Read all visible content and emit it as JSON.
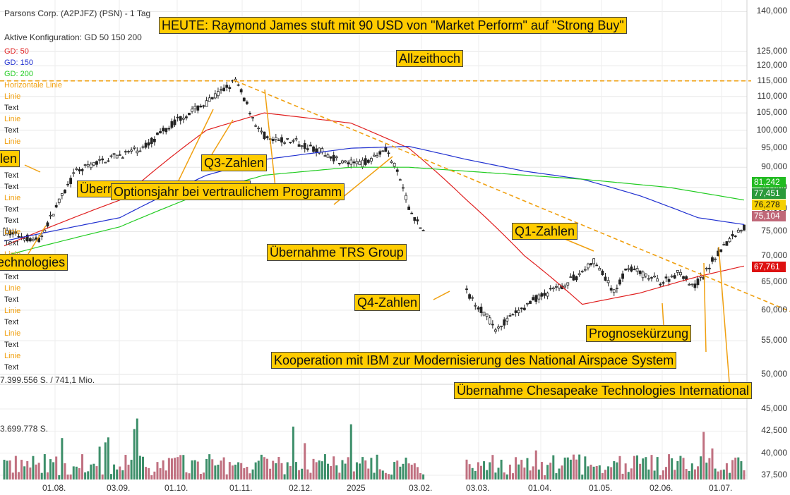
{
  "header": {
    "title": "Parsons Corp. (A2PJFZ) (PSN) - 1 Tag",
    "config": "Aktive Konfiguration: GD 50 150 200",
    "volume_label": "7.399.556 S. / 741,1 Mio.",
    "volume_mark": "3.699.778 S."
  },
  "side_legend": [
    {
      "text": "GD: 50",
      "color": "#e02020"
    },
    {
      "text": "GD: 150",
      "color": "#2030d0"
    },
    {
      "text": "GD: 200",
      "color": "#22cc22"
    },
    {
      "text": "Horizontale Linie",
      "color": "#f0a010"
    },
    {
      "text": "Linie",
      "color": "#f0a010"
    },
    {
      "text": "Text",
      "color": "#222222"
    },
    {
      "text": "Linie",
      "color": "#f0a010"
    },
    {
      "text": "Text",
      "color": "#222222"
    },
    {
      "text": "Linie",
      "color": "#f0a010"
    },
    {
      "text": "Text",
      "color": "#222222"
    },
    {
      "text": "Text",
      "color": "#222222"
    },
    {
      "text": "Linie",
      "color": "#f0a010"
    },
    {
      "text": "Text",
      "color": "#222222"
    },
    {
      "text": "Text",
      "color": "#222222"
    },
    {
      "text": "Linie",
      "color": "#f0a010"
    },
    {
      "text": "Text",
      "color": "#222222"
    },
    {
      "text": "Linie",
      "color": "#f0a010"
    },
    {
      "text": "Text",
      "color": "#222222"
    },
    {
      "text": "Linie",
      "color": "#f0a010"
    },
    {
      "text": "Text",
      "color": "#222222"
    },
    {
      "text": "Linie",
      "color": "#f0a010"
    },
    {
      "text": "Text",
      "color": "#222222"
    },
    {
      "text": "Linie",
      "color": "#f0a010"
    },
    {
      "text": "Text",
      "color": "#222222"
    },
    {
      "text": "Linie",
      "color": "#f0a010"
    },
    {
      "text": "Text",
      "color": "#222222"
    }
  ],
  "annotations": [
    "HEUTE: Raymond James stuft mit 90 USD von \"Market Perform\" auf \"Strong Buy\"",
    "Allzeithoch",
    "len",
    "Q3-Zahlen",
    "Übernahme BCC Engineering",
    "Optionsjahr bei vertraulichem Programm",
    "Übernahme TRS Group",
    "echnologies",
    "Q1-Zahlen",
    "Q4-Zahlen",
    "Prognosekürzung",
    "Kooperation mit IBM zur Modernisierung des National Airspace System",
    "Übernahme Chesapeake Technologies International"
  ],
  "price_badges": [
    {
      "value": "81,242",
      "color": "#22bb22",
      "text_color": "#ffffff"
    },
    {
      "value": "77,451",
      "color": "#2a9a3a",
      "text_color": "#ffffff"
    },
    {
      "value": "76,278",
      "color": "#f5d000",
      "text_color": "#111111"
    },
    {
      "value": "75,104",
      "color": "#c06878",
      "text_color": "#ffffff"
    },
    {
      "value": "67,761",
      "color": "#dd1111",
      "text_color": "#ffffff"
    }
  ],
  "chart_data": {
    "type": "candlestick",
    "scale": "log",
    "x_tick_labels": [
      "01.08.",
      "03.09.",
      "01.10.",
      "01.11.",
      "02.12.",
      "2025",
      "03.02.",
      "03.03.",
      "01.04.",
      "01.05.",
      "02.06.",
      "01.07."
    ],
    "y_ticks": [
      50000,
      55000,
      60000,
      65000,
      70000,
      75000,
      80000,
      85000,
      90000,
      95000,
      100000,
      105000,
      110000,
      115000,
      120000,
      125000,
      140000
    ],
    "y_tick_labels": [
      "50,000",
      "55,000",
      "60,000",
      "65,000",
      "70,000",
      "75,000",
      "80,000",
      "85,000",
      "90,000",
      "95,000",
      "100,000",
      "105,000",
      "110,000",
      "115,000",
      "120,000",
      "125,000",
      "140,000"
    ],
    "volume_ticks": [
      37500,
      40000,
      42500,
      45000
    ],
    "volume_tick_labels": [
      "37,500",
      "40,000",
      "42,500",
      "45,000"
    ],
    "series": [
      {
        "name": "GD: 50",
        "color": "#e02020"
      },
      {
        "name": "GD: 150",
        "color": "#2030d0"
      },
      {
        "name": "GD: 200",
        "color": "#22cc22"
      }
    ],
    "price_path": [
      [
        0,
        75
      ],
      [
        12,
        73
      ],
      [
        25,
        89
      ],
      [
        35,
        92
      ],
      [
        48,
        95
      ],
      [
        60,
        103
      ],
      [
        70,
        108
      ],
      [
        80,
        115
      ],
      [
        88,
        100
      ],
      [
        92,
        97
      ],
      [
        100,
        97
      ],
      [
        110,
        94
      ],
      [
        118,
        91
      ],
      [
        124,
        91
      ],
      [
        132,
        95
      ],
      [
        137,
        87
      ],
      [
        140,
        80
      ],
      [
        145,
        75
      ],
      [
        150,
        72
      ],
      [
        155,
        66
      ],
      [
        162,
        62
      ],
      [
        170,
        57
      ],
      [
        176,
        59
      ],
      [
        184,
        62
      ],
      [
        192,
        64
      ],
      [
        198,
        66
      ],
      [
        204,
        69
      ],
      [
        211,
        63
      ],
      [
        216,
        68
      ],
      [
        222,
        66
      ],
      [
        228,
        65
      ],
      [
        234,
        67
      ],
      [
        238,
        64
      ],
      [
        242,
        66
      ],
      [
        246,
        70
      ],
      [
        249,
        72
      ],
      [
        252,
        74
      ],
      [
        256,
        76
      ]
    ],
    "moving_averages": {
      "GD: 50": [
        [
          0,
          72
        ],
        [
          40,
          82
        ],
        [
          70,
          100
        ],
        [
          90,
          105
        ],
        [
          120,
          102
        ],
        [
          140,
          95
        ],
        [
          160,
          82
        ],
        [
          180,
          70
        ],
        [
          200,
          61
        ],
        [
          220,
          63
        ],
        [
          240,
          66
        ],
        [
          256,
          68
        ]
      ],
      "GD: 150": [
        [
          0,
          73
        ],
        [
          40,
          78
        ],
        [
          70,
          88
        ],
        [
          90,
          92
        ],
        [
          120,
          95
        ],
        [
          140,
          95.5
        ],
        [
          160,
          92
        ],
        [
          180,
          89
        ],
        [
          200,
          87
        ],
        [
          220,
          83
        ],
        [
          240,
          78
        ],
        [
          256,
          76.5
        ]
      ],
      "GD: 200": [
        [
          0,
          70
        ],
        [
          40,
          76
        ],
        [
          70,
          84
        ],
        [
          90,
          88
        ],
        [
          120,
          90
        ],
        [
          140,
          90
        ],
        [
          160,
          89
        ],
        [
          200,
          87
        ],
        [
          230,
          85
        ],
        [
          256,
          82
        ]
      ]
    },
    "horizontal_line": 115000,
    "trend_line": [
      [
        80,
        115000
      ],
      [
        256,
        63500
      ]
    ]
  }
}
